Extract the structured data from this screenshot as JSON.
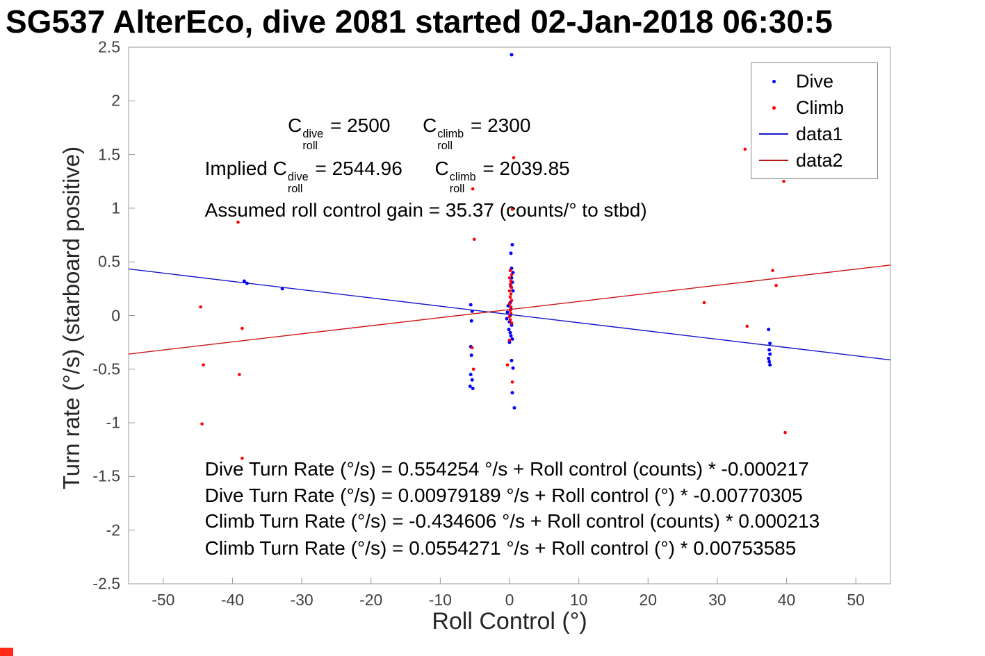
{
  "chart_data": {
    "type": "scatter",
    "title": "SG537 AlterEco, dive 2081 started 02-Jan-2018 06:30:5",
    "xlabel": "Roll Control (°)",
    "ylabel": "Turn rate (°/s) (starboard positive)",
    "xlim": [
      -55,
      55
    ],
    "ylim": [
      -2.5,
      2.5
    ],
    "grid": false,
    "axis_color": "#999999",
    "xticks": [
      -50,
      -40,
      -30,
      -20,
      -10,
      0,
      10,
      20,
      30,
      40,
      50
    ],
    "xtick_labels": [
      "-50",
      "-40",
      "-30",
      "-20",
      "-10",
      "0",
      "10",
      "20",
      "30",
      "40",
      "50"
    ],
    "yticks": [
      -2.5,
      -2,
      -1.5,
      -1,
      -0.5,
      0,
      0.5,
      1,
      1.5,
      2,
      2.5
    ],
    "ytick_labels": [
      "-2.5",
      "-2",
      "-1.5",
      "-1",
      "-0.5",
      "0",
      "0.5",
      "1",
      "1.5",
      "2",
      "2.5"
    ],
    "legend": {
      "position": "northeast",
      "entries": [
        {
          "label": "Dive",
          "type": "marker",
          "color": "#0000ff"
        },
        {
          "label": "Climb",
          "type": "marker",
          "color": "#ff0000"
        },
        {
          "label": "data1",
          "type": "line",
          "color": "#1414cc"
        },
        {
          "label": "data2",
          "type": "line",
          "color": "#b41414"
        }
      ]
    },
    "series": [
      {
        "name": "Dive",
        "type": "scatter",
        "color": "#0000ff",
        "marker_size": 2.5,
        "points": [
          [
            0.3,
            2.43
          ],
          [
            -38.3,
            0.32
          ],
          [
            -37.9,
            0.3
          ],
          [
            -32.8,
            0.25
          ],
          [
            -5.6,
            0.1
          ],
          [
            -5.4,
            0.04
          ],
          [
            -5.5,
            -0.05
          ],
          [
            -5.6,
            -0.29
          ],
          [
            -5.5,
            -0.37
          ],
          [
            -5.6,
            -0.55
          ],
          [
            -5.4,
            -0.6
          ],
          [
            -5.7,
            -0.66
          ],
          [
            -5.3,
            -0.68
          ],
          [
            0.4,
            0.66
          ],
          [
            0.2,
            0.58
          ],
          [
            0.3,
            0.44
          ],
          [
            0.5,
            0.4
          ],
          [
            0.3,
            0.35
          ],
          [
            0.4,
            0.31
          ],
          [
            0.2,
            0.27
          ],
          [
            0.5,
            0.23
          ],
          [
            0.1,
            0.12
          ],
          [
            -0.2,
            0.09
          ],
          [
            0.2,
            0.06
          ],
          [
            -0.3,
            0.03
          ],
          [
            0.1,
            0.0
          ],
          [
            -0.4,
            -0.03
          ],
          [
            0.0,
            -0.06
          ],
          [
            0.3,
            -0.09
          ],
          [
            -0.1,
            -0.13
          ],
          [
            0.1,
            -0.16
          ],
          [
            0.2,
            -0.19
          ],
          [
            0.4,
            -0.22
          ],
          [
            0.0,
            -0.25
          ],
          [
            0.3,
            -0.42
          ],
          [
            0.5,
            -0.49
          ],
          [
            0.4,
            -0.72
          ],
          [
            0.7,
            -0.86
          ],
          [
            37.4,
            -0.13
          ],
          [
            37.6,
            -0.26
          ],
          [
            37.5,
            -0.32
          ],
          [
            37.6,
            -0.36
          ],
          [
            37.4,
            -0.4
          ],
          [
            37.5,
            -0.43
          ],
          [
            37.6,
            -0.46
          ]
        ]
      },
      {
        "name": "Climb",
        "type": "scatter",
        "color": "#ff0000",
        "marker_size": 2.3,
        "points": [
          [
            -44.6,
            0.08
          ],
          [
            -44.2,
            -0.46
          ],
          [
            -44.4,
            -1.01
          ],
          [
            -39.2,
            0.87
          ],
          [
            -38.6,
            -0.12
          ],
          [
            -39.0,
            -0.55
          ],
          [
            -38.6,
            -1.33
          ],
          [
            -5.3,
            1.18
          ],
          [
            -5.1,
            0.71
          ],
          [
            -5.4,
            -0.3
          ],
          [
            -5.2,
            -0.5
          ],
          [
            0.6,
            1.47
          ],
          [
            0.4,
            0.99
          ],
          [
            0.1,
            0.42
          ],
          [
            0.3,
            0.38
          ],
          [
            0.0,
            0.35
          ],
          [
            0.2,
            0.32
          ],
          [
            0.1,
            0.29
          ],
          [
            0.3,
            0.26
          ],
          [
            0.0,
            0.23
          ],
          [
            0.2,
            0.2
          ],
          [
            0.1,
            0.17
          ],
          [
            0.3,
            0.14
          ],
          [
            0.0,
            0.11
          ],
          [
            0.2,
            0.08
          ],
          [
            0.1,
            0.05
          ],
          [
            0.2,
            0.02
          ],
          [
            0.0,
            -0.01
          ],
          [
            0.1,
            -0.04
          ],
          [
            0.3,
            -0.07
          ],
          [
            0.0,
            -0.23
          ],
          [
            -0.3,
            -0.46
          ],
          [
            0.4,
            -0.62
          ],
          [
            28.1,
            0.12
          ],
          [
            34.0,
            1.55
          ],
          [
            34.3,
            -0.1
          ],
          [
            38.0,
            0.42
          ],
          [
            38.5,
            0.28
          ],
          [
            39.6,
            1.25
          ],
          [
            39.8,
            -1.09
          ]
        ]
      },
      {
        "name": "data1",
        "type": "line",
        "color": "#1414cc",
        "intercept": 0.00979189,
        "slope": -0.00770305
      },
      {
        "name": "data2",
        "type": "line",
        "color": "#cc1414",
        "intercept": 0.0554271,
        "slope": 0.00753585
      }
    ],
    "annotations": [
      {
        "x": -32,
        "y": 1.7,
        "parts": [
          {
            "base": "C",
            "sup": "dive",
            "sub": "roll"
          },
          {
            "t": " = 2500      "
          },
          {
            "base": "C",
            "sup": "climb",
            "sub": "roll"
          },
          {
            "t": " = 2300"
          }
        ]
      },
      {
        "x": -44,
        "y": 1.3,
        "parts": [
          {
            "t": "Implied "
          },
          {
            "base": "C",
            "sup": "dive",
            "sub": "roll"
          },
          {
            "t": " = 2544.96      "
          },
          {
            "base": "C",
            "sup": "climb",
            "sub": "roll"
          },
          {
            "t": " = 2039.85"
          }
        ]
      },
      {
        "x": -44,
        "y": 0.98,
        "parts": [
          {
            "t": "Assumed roll control gain = 35.37 (counts/° to stbd)"
          }
        ]
      },
      {
        "x": -44,
        "y": -1.43,
        "parts": [
          {
            "t": "Dive Turn Rate (°/s) = 0.554254 °/s + Roll control (counts) * -0.000217"
          }
        ]
      },
      {
        "x": -44,
        "y": -1.68,
        "parts": [
          {
            "t": "Dive Turn Rate (°/s) = 0.00979189 °/s + Roll control (°) * -0.00770305"
          }
        ]
      },
      {
        "x": -44,
        "y": -1.92,
        "parts": [
          {
            "t": "Climb Turn Rate (°/s) = -0.434606 °/s + Roll control (counts) * 0.000213"
          }
        ]
      },
      {
        "x": -44,
        "y": -2.17,
        "parts": [
          {
            "t": "Climb Turn Rate (°/s) = 0.0554271 °/s + Roll control (°) * 0.00753585"
          }
        ]
      }
    ]
  },
  "artifact": {
    "color": "#ff2a1a"
  }
}
